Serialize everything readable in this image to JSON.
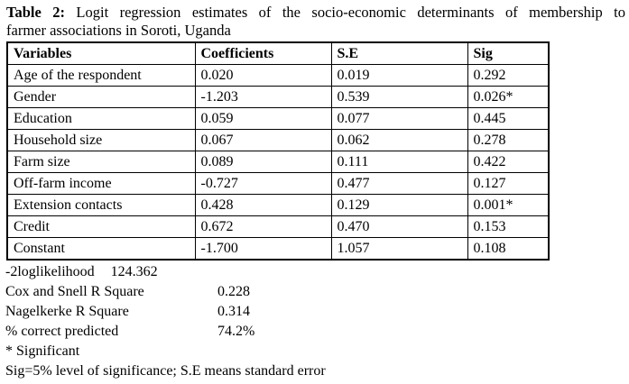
{
  "title": {
    "label": "Table 2:",
    "line1_rest": " Logit regression estimates of the socio-economic determinants of membership to",
    "line2": "farmer associations in Soroti, Uganda"
  },
  "table": {
    "columns": [
      "Variables",
      "Coefficients",
      "S.E",
      "Sig"
    ],
    "rows": [
      [
        "Age of the respondent",
        "0.020",
        "0.019",
        "0.292"
      ],
      [
        "Gender",
        "-1.203",
        "0.539",
        "0.026*"
      ],
      [
        "Education",
        "0.059",
        "0.077",
        "0.445"
      ],
      [
        "Household size",
        "0.067",
        "0.062",
        "0.278"
      ],
      [
        "Farm size",
        "0.089",
        "0.111",
        "0.422"
      ],
      [
        "Off-farm income",
        "-0.727",
        "0.477",
        "0.127"
      ],
      [
        "Extension contacts",
        "0.428",
        "0.129",
        "0.001*"
      ],
      [
        "Credit",
        "0.672",
        "0.470",
        "0.153"
      ],
      [
        "Constant",
        "-1.700",
        "1.057",
        "0.108"
      ]
    ]
  },
  "stats": [
    {
      "label": "-2loglikelihood",
      "value": "124.362"
    },
    {
      "label": "Cox and Snell R Square",
      "value": "0.228"
    },
    {
      "label": "Nagelkerke R Square",
      "value": "0.314"
    },
    {
      "label": "% correct predicted",
      "value": "74.2%"
    }
  ],
  "notes": [
    "* Significant",
    "Sig=5% level of significance; S.E means standard error"
  ]
}
